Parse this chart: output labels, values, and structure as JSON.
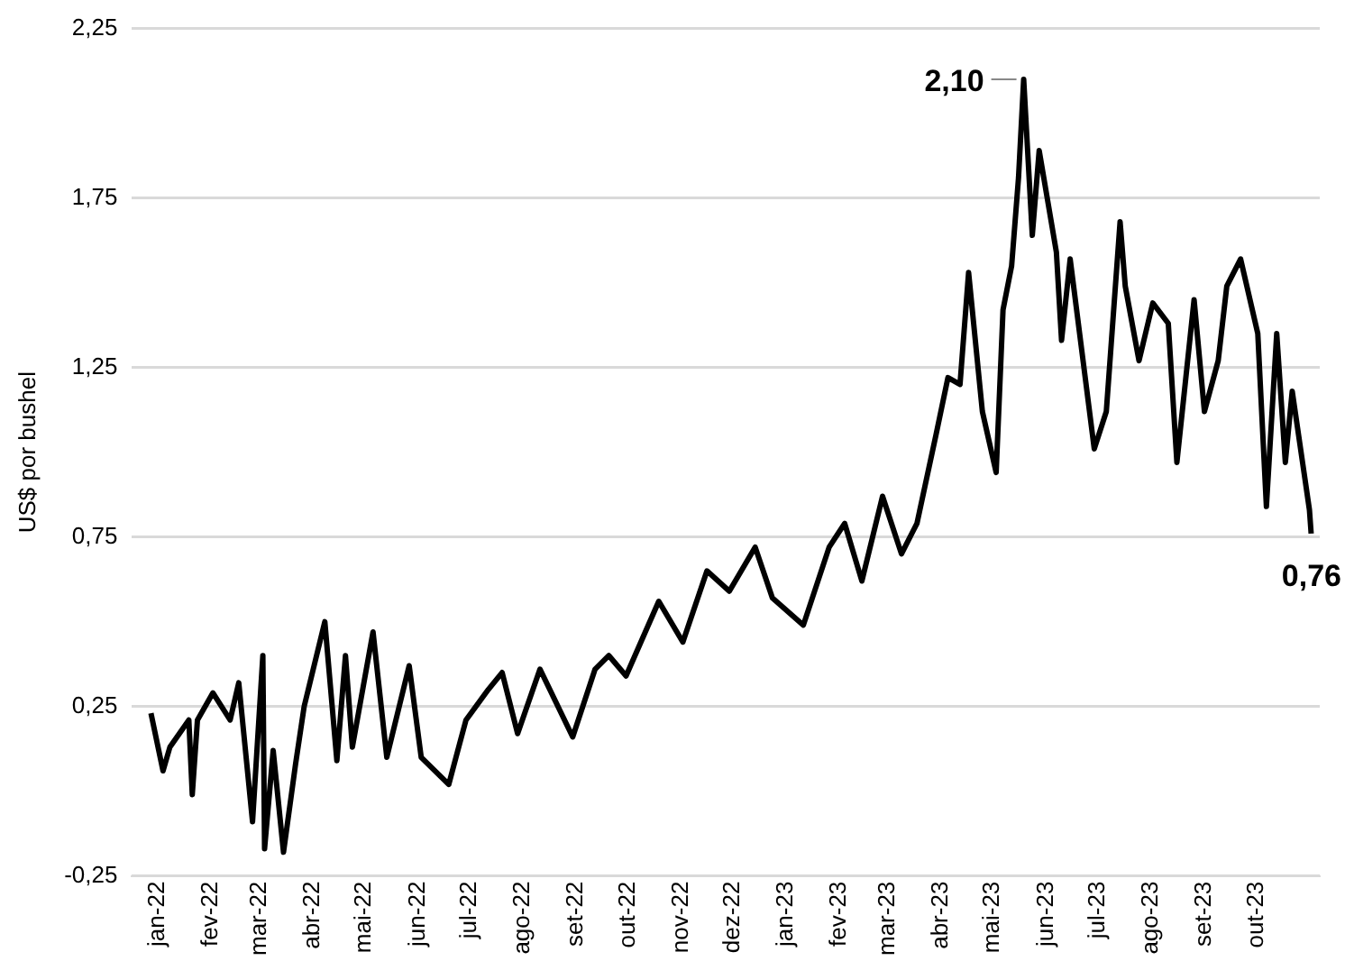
{
  "chart_data": {
    "type": "line",
    "ylabel": "US$ por bushel",
    "grid": "y",
    "legend": false,
    "marker": "none",
    "line_style": "solid",
    "xlim": [
      "2021-12-17",
      "2023-11-07"
    ],
    "xticks": [
      {
        "value": "2022-01-01",
        "label": "jan-22"
      },
      {
        "value": "2022-02-01",
        "label": "fev-22"
      },
      {
        "value": "2022-03-01",
        "label": "mar-22"
      },
      {
        "value": "2022-04-01",
        "label": "abr-22"
      },
      {
        "value": "2022-05-01",
        "label": "mai-22"
      },
      {
        "value": "2022-06-01",
        "label": "jun-22"
      },
      {
        "value": "2022-07-01",
        "label": "jul-22"
      },
      {
        "value": "2022-08-01",
        "label": "ago-22"
      },
      {
        "value": "2022-09-01",
        "label": "set-22"
      },
      {
        "value": "2022-10-01",
        "label": "out-22"
      },
      {
        "value": "2022-11-01",
        "label": "nov-22"
      },
      {
        "value": "2022-12-01",
        "label": "dez-22"
      },
      {
        "value": "2023-01-01",
        "label": "jan-23"
      },
      {
        "value": "2023-02-01",
        "label": "fev-23"
      },
      {
        "value": "2023-03-01",
        "label": "mar-23"
      },
      {
        "value": "2023-04-01",
        "label": "abr-23"
      },
      {
        "value": "2023-05-01",
        "label": "mai-23"
      },
      {
        "value": "2023-06-01",
        "label": "jun-23"
      },
      {
        "value": "2023-07-01",
        "label": "jul-23"
      },
      {
        "value": "2023-08-01",
        "label": "ago-23"
      },
      {
        "value": "2023-09-01",
        "label": "set-23"
      },
      {
        "value": "2023-10-01",
        "label": "out-23"
      }
    ],
    "ylim": [
      -0.25,
      2.25
    ],
    "yticks": [
      {
        "value": -0.25,
        "label": "-0,25"
      },
      {
        "value": 0.25,
        "label": "0,25"
      },
      {
        "value": 0.75,
        "label": "0,75"
      },
      {
        "value": 1.25,
        "label": "1,25"
      },
      {
        "value": 1.75,
        "label": "1,75"
      },
      {
        "value": 2.25,
        "label": "2,25"
      }
    ],
    "x": [
      "2021-12-28",
      "2022-01-04",
      "2022-01-08",
      "2022-01-19",
      "2022-01-21",
      "2022-01-24",
      "2022-02-02",
      "2022-02-12",
      "2022-02-17",
      "2022-02-25",
      "2022-03-03",
      "2022-03-04",
      "2022-03-09",
      "2022-03-15",
      "2022-03-22",
      "2022-03-27",
      "2022-04-08",
      "2022-04-15",
      "2022-04-20",
      "2022-04-24",
      "2022-05-06",
      "2022-05-14",
      "2022-05-27",
      "2022-06-03",
      "2022-06-19",
      "2022-06-29",
      "2022-07-12",
      "2022-07-20",
      "2022-07-29",
      "2022-08-11",
      "2022-08-30",
      "2022-09-12",
      "2022-09-20",
      "2022-09-30",
      "2022-10-19",
      "2022-11-02",
      "2022-11-16",
      "2022-11-29",
      "2022-12-14",
      "2022-12-24",
      "2023-01-11",
      "2023-01-26",
      "2023-02-04",
      "2023-02-14",
      "2023-02-26",
      "2023-03-09",
      "2023-03-18",
      "2023-03-29",
      "2023-04-05",
      "2023-04-12",
      "2023-04-17",
      "2023-04-25",
      "2023-05-03",
      "2023-05-07",
      "2023-05-12",
      "2023-05-16",
      "2023-05-19",
      "2023-05-24",
      "2023-05-28",
      "2023-06-07",
      "2023-06-10",
      "2023-06-15",
      "2023-06-29",
      "2023-07-06",
      "2023-07-14",
      "2023-07-17",
      "2023-07-25",
      "2023-08-02",
      "2023-08-11",
      "2023-08-16",
      "2023-08-26",
      "2023-09-01",
      "2023-09-09",
      "2023-09-14",
      "2023-09-22",
      "2023-10-02",
      "2023-10-07",
      "2023-10-13",
      "2023-10-18",
      "2023-10-22",
      "2023-10-28",
      "2023-11-01",
      "2023-11-02"
    ],
    "series": [
      {
        "color": "#000000",
        "values": [
          0.23,
          0.06,
          0.13,
          0.21,
          -0.01,
          0.21,
          0.29,
          0.21,
          0.32,
          -0.09,
          0.4,
          -0.17,
          0.12,
          -0.18,
          0.08,
          0.25,
          0.5,
          0.09,
          0.4,
          0.13,
          0.47,
          0.1,
          0.37,
          0.1,
          0.02,
          0.21,
          0.3,
          0.35,
          0.17,
          0.36,
          0.16,
          0.36,
          0.4,
          0.34,
          0.56,
          0.44,
          0.65,
          0.59,
          0.72,
          0.57,
          0.49,
          0.72,
          0.79,
          0.62,
          0.87,
          0.7,
          0.79,
          1.05,
          1.22,
          1.2,
          1.53,
          1.12,
          0.94,
          1.42,
          1.55,
          1.81,
          2.1,
          1.64,
          1.89,
          1.59,
          1.33,
          1.57,
          1.01,
          1.12,
          1.68,
          1.49,
          1.27,
          1.44,
          1.38,
          0.97,
          1.45,
          1.12,
          1.27,
          1.49,
          1.57,
          1.35,
          0.84,
          1.35,
          0.97,
          1.18,
          0.97,
          0.83,
          0.76
        ]
      }
    ],
    "annotations": [
      {
        "text": "2,10",
        "x": "2023-05-19",
        "y": 2.1
      },
      {
        "text": "0,76",
        "x": "2023-11-02",
        "y": 0.76
      }
    ]
  }
}
